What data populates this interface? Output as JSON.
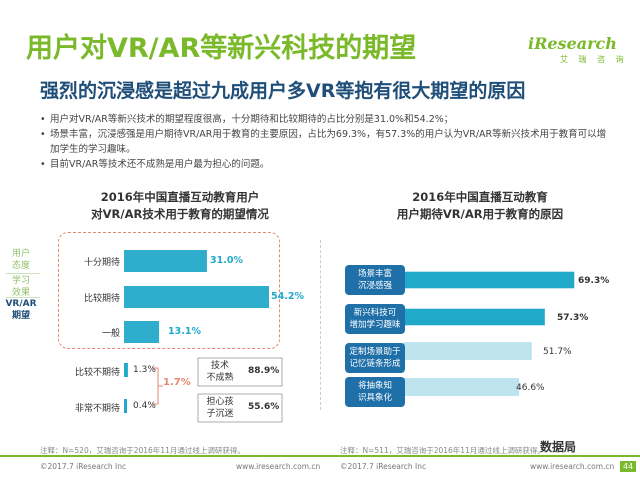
{
  "header": {
    "title": "用户对VR/AR等新兴科技的期望",
    "brand": "iResearch",
    "brand_sub": "艾 瑞 咨 询",
    "subtitle": "强烈的沉浸感是超过九成用户多VR等抱有很大期望的原因"
  },
  "bullets": [
    "用户对VR/AR等新兴技术的期望程度很高，十分期待和比较期待的占比分别是31.0%和54.2%；",
    "场景丰富，沉浸感强是用户期待VR/AR用于教育的主要原因，占比为69.3%，有57.3%的用户认为VR/AR等新兴技术用于教育可以增加学生的学习趣味。",
    "目前VR/AR等技术还不成熟是用户最为担心的问题。"
  ],
  "side_labels": [
    "用户\n态度",
    "学习\n效果",
    "VR/AR\n期望"
  ],
  "chart_data": [
    {
      "type": "bar",
      "title": "2016年中国直播互动教育用户\n对VR/AR技术用于教育的期望情况",
      "categories": [
        "十分期待",
        "比较期待",
        "一般",
        "比较不期待",
        "非常不期待"
      ],
      "values": [
        31.0,
        54.2,
        13.1,
        1.3,
        0.4
      ],
      "value_labels": [
        "31.0%",
        "54.2%",
        "13.1%",
        "1.3%",
        "0.4%"
      ],
      "brace_total": "1.7%",
      "concerns": [
        {
          "label": "技术\n不成熟",
          "value": 88.9,
          "value_label": "88.9%"
        },
        {
          "label": "担心孩\n子沉迷",
          "value": 55.6,
          "value_label": "55.6%"
        }
      ],
      "note": "注释：N=520，艾瑞咨询于2016年11月通过线上调研获得。",
      "colors": {
        "bar": "#21a9c9",
        "light": "#a8d8e8"
      }
    },
    {
      "type": "bar",
      "title": "2016年中国直播互动教育\n用户期待VR/AR用于教育的原因",
      "categories": [
        "场景丰富\n沉浸感强",
        "新兴科技可\n增加学习趣味",
        "定制场景助于\n记忆链条形成",
        "将抽象知\n识具象化"
      ],
      "values": [
        69.3,
        57.3,
        51.7,
        46.6
      ],
      "value_labels": [
        "69.3%",
        "57.3%",
        "51.7%",
        "46.6%"
      ],
      "note": "注释：N=511，艾瑞咨询于2016年11月通过线上调研获得。",
      "colors": {
        "bar": "#21a9c9",
        "label_bg": "#1f6fa8"
      }
    }
  ],
  "footer": {
    "copyright": "©2017.7 iResearch Inc",
    "website": "www.iresearch.com.cn",
    "copyright2": "©2017.7 iResearch Inc",
    "website2": "www.iresearch.com.cn",
    "wechat": "数据局",
    "page": "44"
  }
}
